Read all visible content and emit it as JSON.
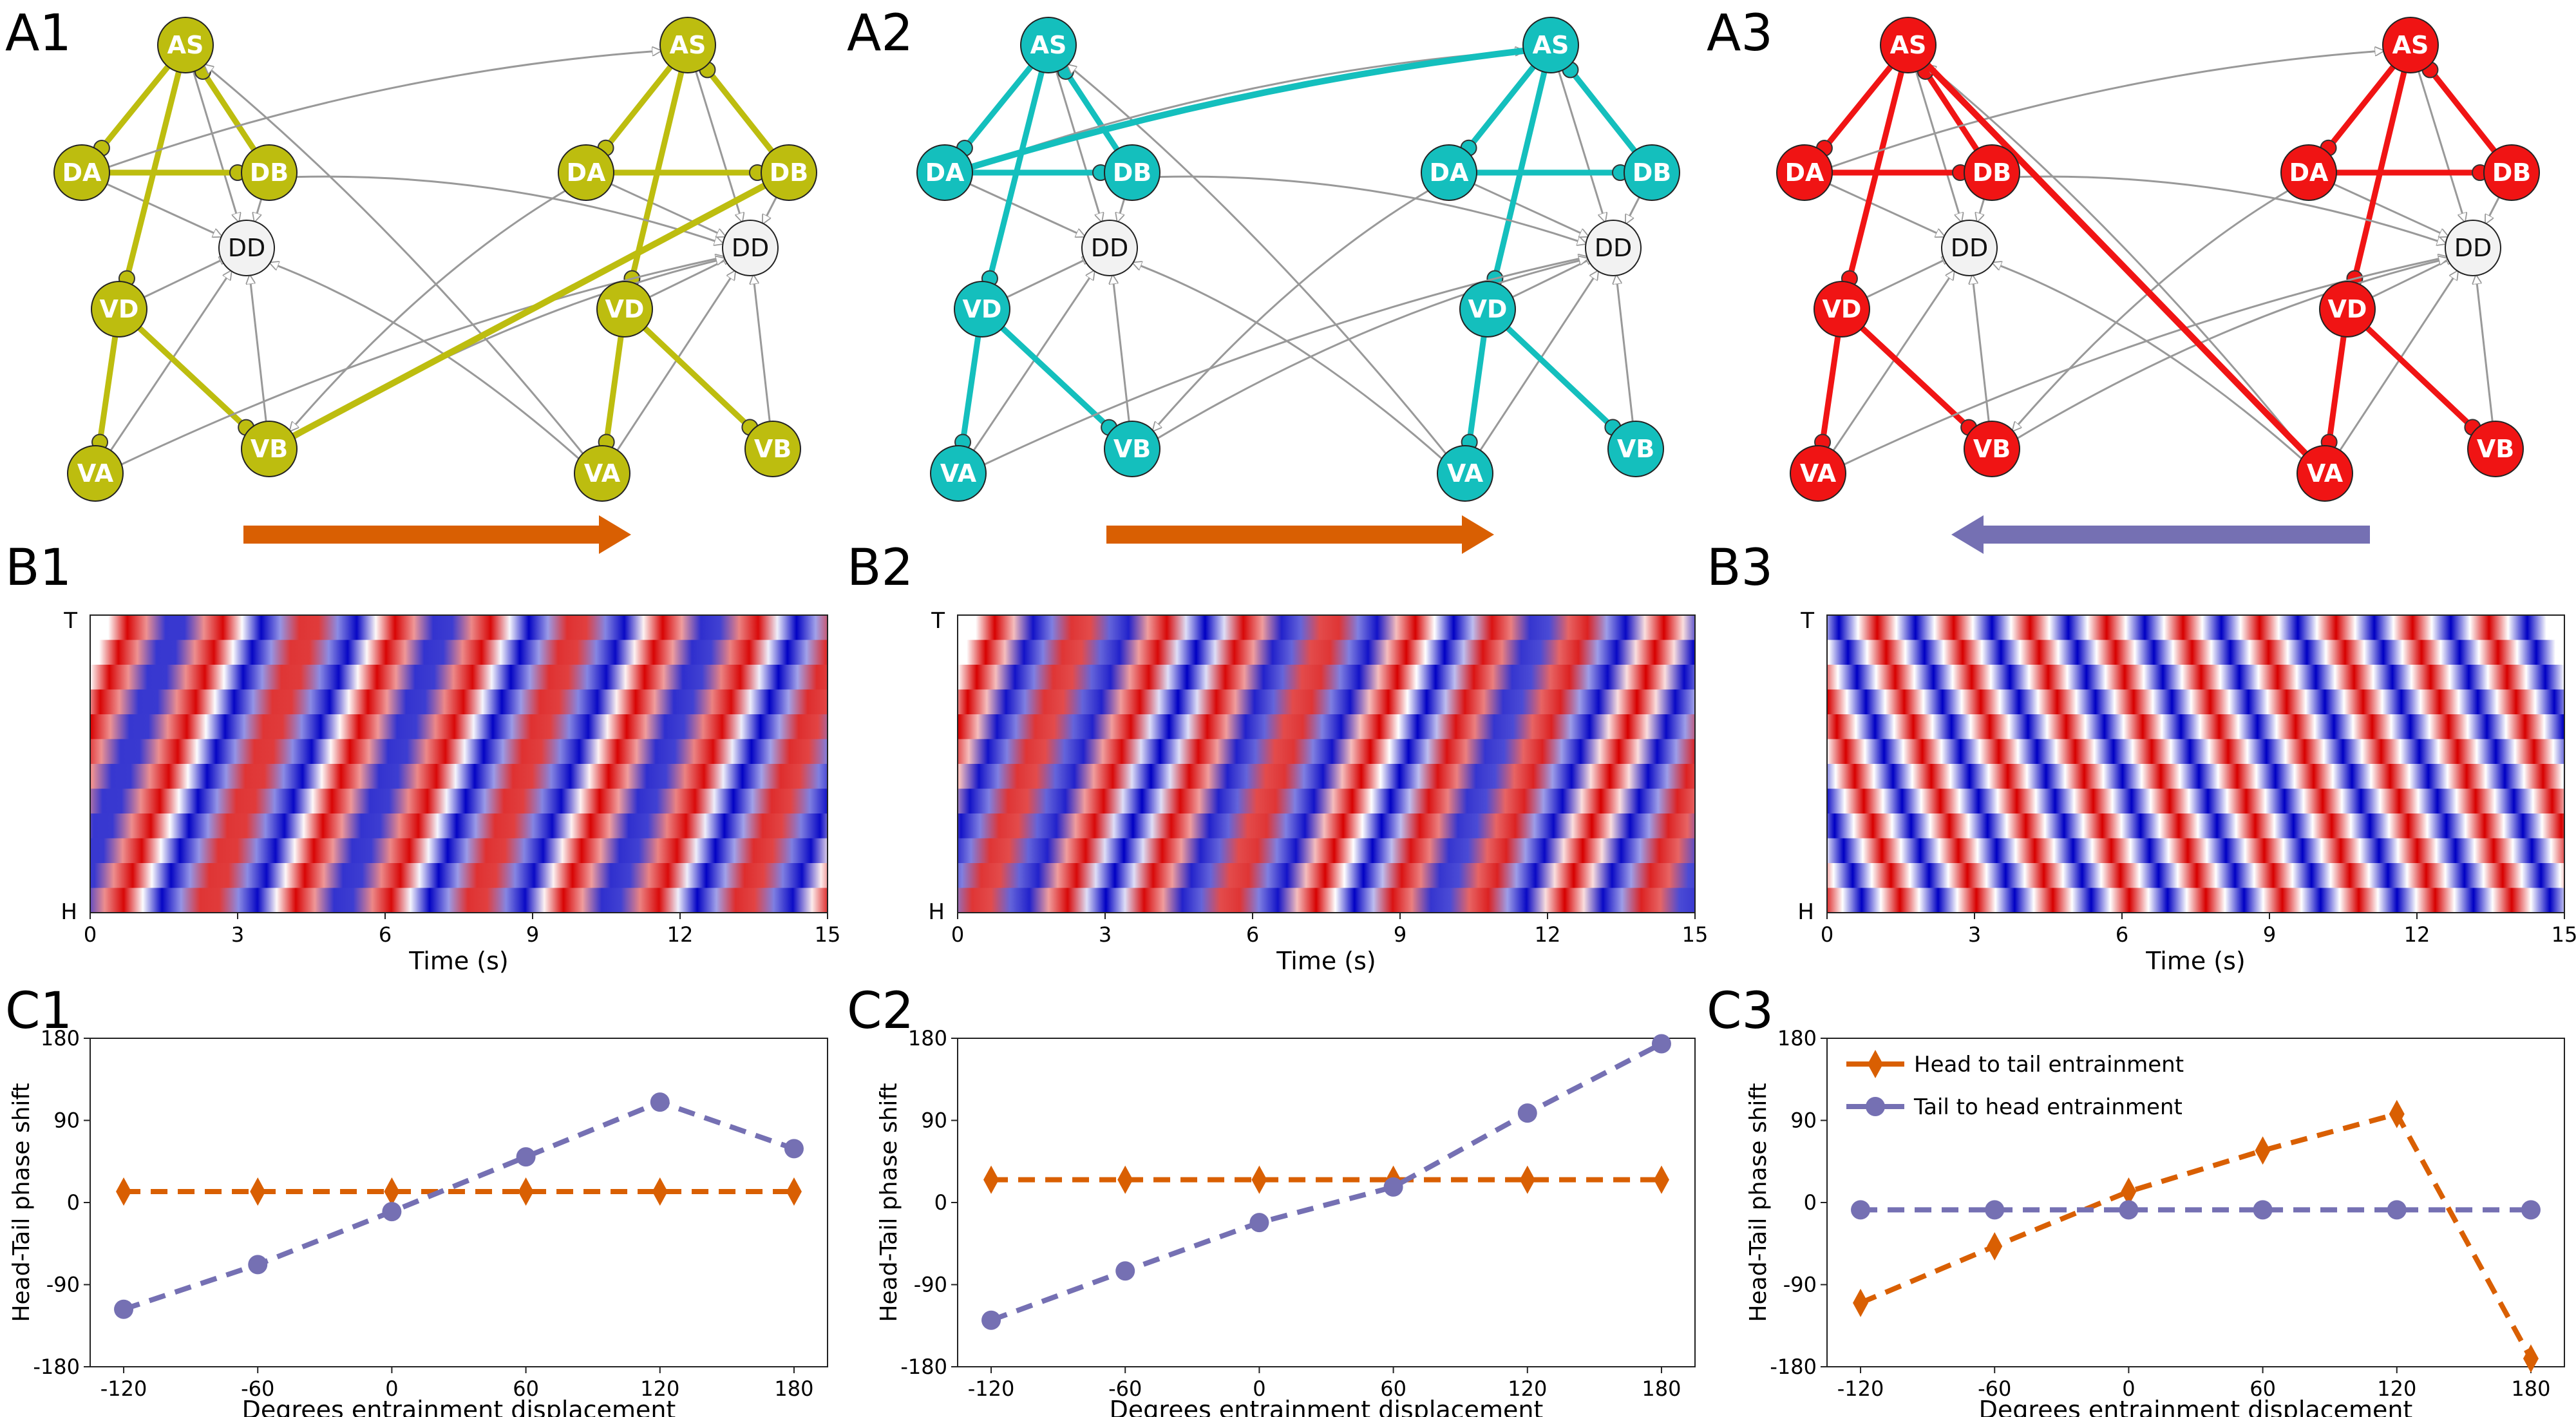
{
  "panel_labels": {
    "A1": "A1",
    "A2": "A2",
    "A3": "A3",
    "B1": "B1",
    "B2": "B2",
    "B3": "B3",
    "C1": "C1",
    "C2": "C2",
    "C3": "C3"
  },
  "network": {
    "neurons": {
      "AS": "AS",
      "DA": "DA",
      "DB": "DB",
      "DD": "DD",
      "VD": "VD",
      "VA": "VA",
      "VB": "VB"
    },
    "panels": [
      {
        "color": "#bdbd0f",
        "direction": "head-to-tail",
        "arrow_color": "#d95f02"
      },
      {
        "color": "#14bfbd",
        "direction": "head-to-tail",
        "arrow_color": "#d95f02"
      },
      {
        "color": "#f01414",
        "direction": "tail-to-head",
        "arrow_color": "#7570b3"
      }
    ]
  },
  "kymograph": {
    "y_top_label": "T",
    "y_bottom_label": "H",
    "xlabel": "Time (s)",
    "xticks": [
      "0",
      "3",
      "6",
      "9",
      "12",
      "15"
    ]
  },
  "legend": {
    "head_to_tail": "Head to tail entrainment",
    "tail_to_head": "Tail to head entrainment"
  },
  "colors": {
    "head_to_tail": "#d95f02",
    "tail_to_head": "#7570b3"
  },
  "chart_data": [
    {
      "type": "line",
      "panel": "C1",
      "xlabel": "Degrees entrainment displacement",
      "ylabel": "Head-Tail phase shift",
      "xticks": [
        "-120",
        "-60",
        "0",
        "60",
        "120",
        "180"
      ],
      "yticks": [
        "180",
        "90",
        "0",
        "-90",
        "-180"
      ],
      "x": [
        -120,
        -60,
        0,
        60,
        120,
        180
      ],
      "xlim": [
        -135,
        195
      ],
      "ylim": [
        -180,
        180
      ],
      "series": [
        {
          "name": "Head to tail entrainment",
          "values": [
            12,
            12,
            12,
            12,
            12,
            12
          ]
        },
        {
          "name": "Tail to head entrainment",
          "values": [
            -117,
            -68,
            -10,
            50,
            110,
            59
          ]
        }
      ]
    },
    {
      "type": "line",
      "panel": "C2",
      "xlabel": "Degrees entrainment displacement",
      "ylabel": "Head-Tail phase shift",
      "xticks": [
        "-120",
        "-60",
        "0",
        "60",
        "120",
        "180"
      ],
      "yticks": [
        "180",
        "90",
        "0",
        "-90",
        "-180"
      ],
      "x": [
        -120,
        -60,
        0,
        60,
        120,
        180
      ],
      "xlim": [
        -135,
        195
      ],
      "ylim": [
        -180,
        180
      ],
      "series": [
        {
          "name": "Head to tail entrainment",
          "values": [
            25,
            25,
            25,
            25,
            25,
            25
          ]
        },
        {
          "name": "Tail to head entrainment",
          "values": [
            -129,
            -75,
            -22,
            17,
            98,
            174
          ]
        }
      ]
    },
    {
      "type": "line",
      "panel": "C3",
      "xlabel": "Degrees entrainment displacement",
      "ylabel": "Head-Tail phase shift",
      "xticks": [
        "-120",
        "-60",
        "0",
        "60",
        "120",
        "180"
      ],
      "yticks": [
        "180",
        "90",
        "0",
        "-90",
        "-180"
      ],
      "x": [
        -120,
        -60,
        0,
        60,
        120,
        180
      ],
      "xlim": [
        -135,
        195
      ],
      "ylim": [
        -180,
        180
      ],
      "legend": "top-left",
      "series": [
        {
          "name": "Head to tail entrainment",
          "values": [
            -110,
            -48,
            12,
            57,
            97,
            -171
          ]
        },
        {
          "name": "Tail to head entrainment",
          "values": [
            -8,
            -8,
            -8,
            -8,
            -8,
            -8
          ]
        }
      ]
    }
  ]
}
